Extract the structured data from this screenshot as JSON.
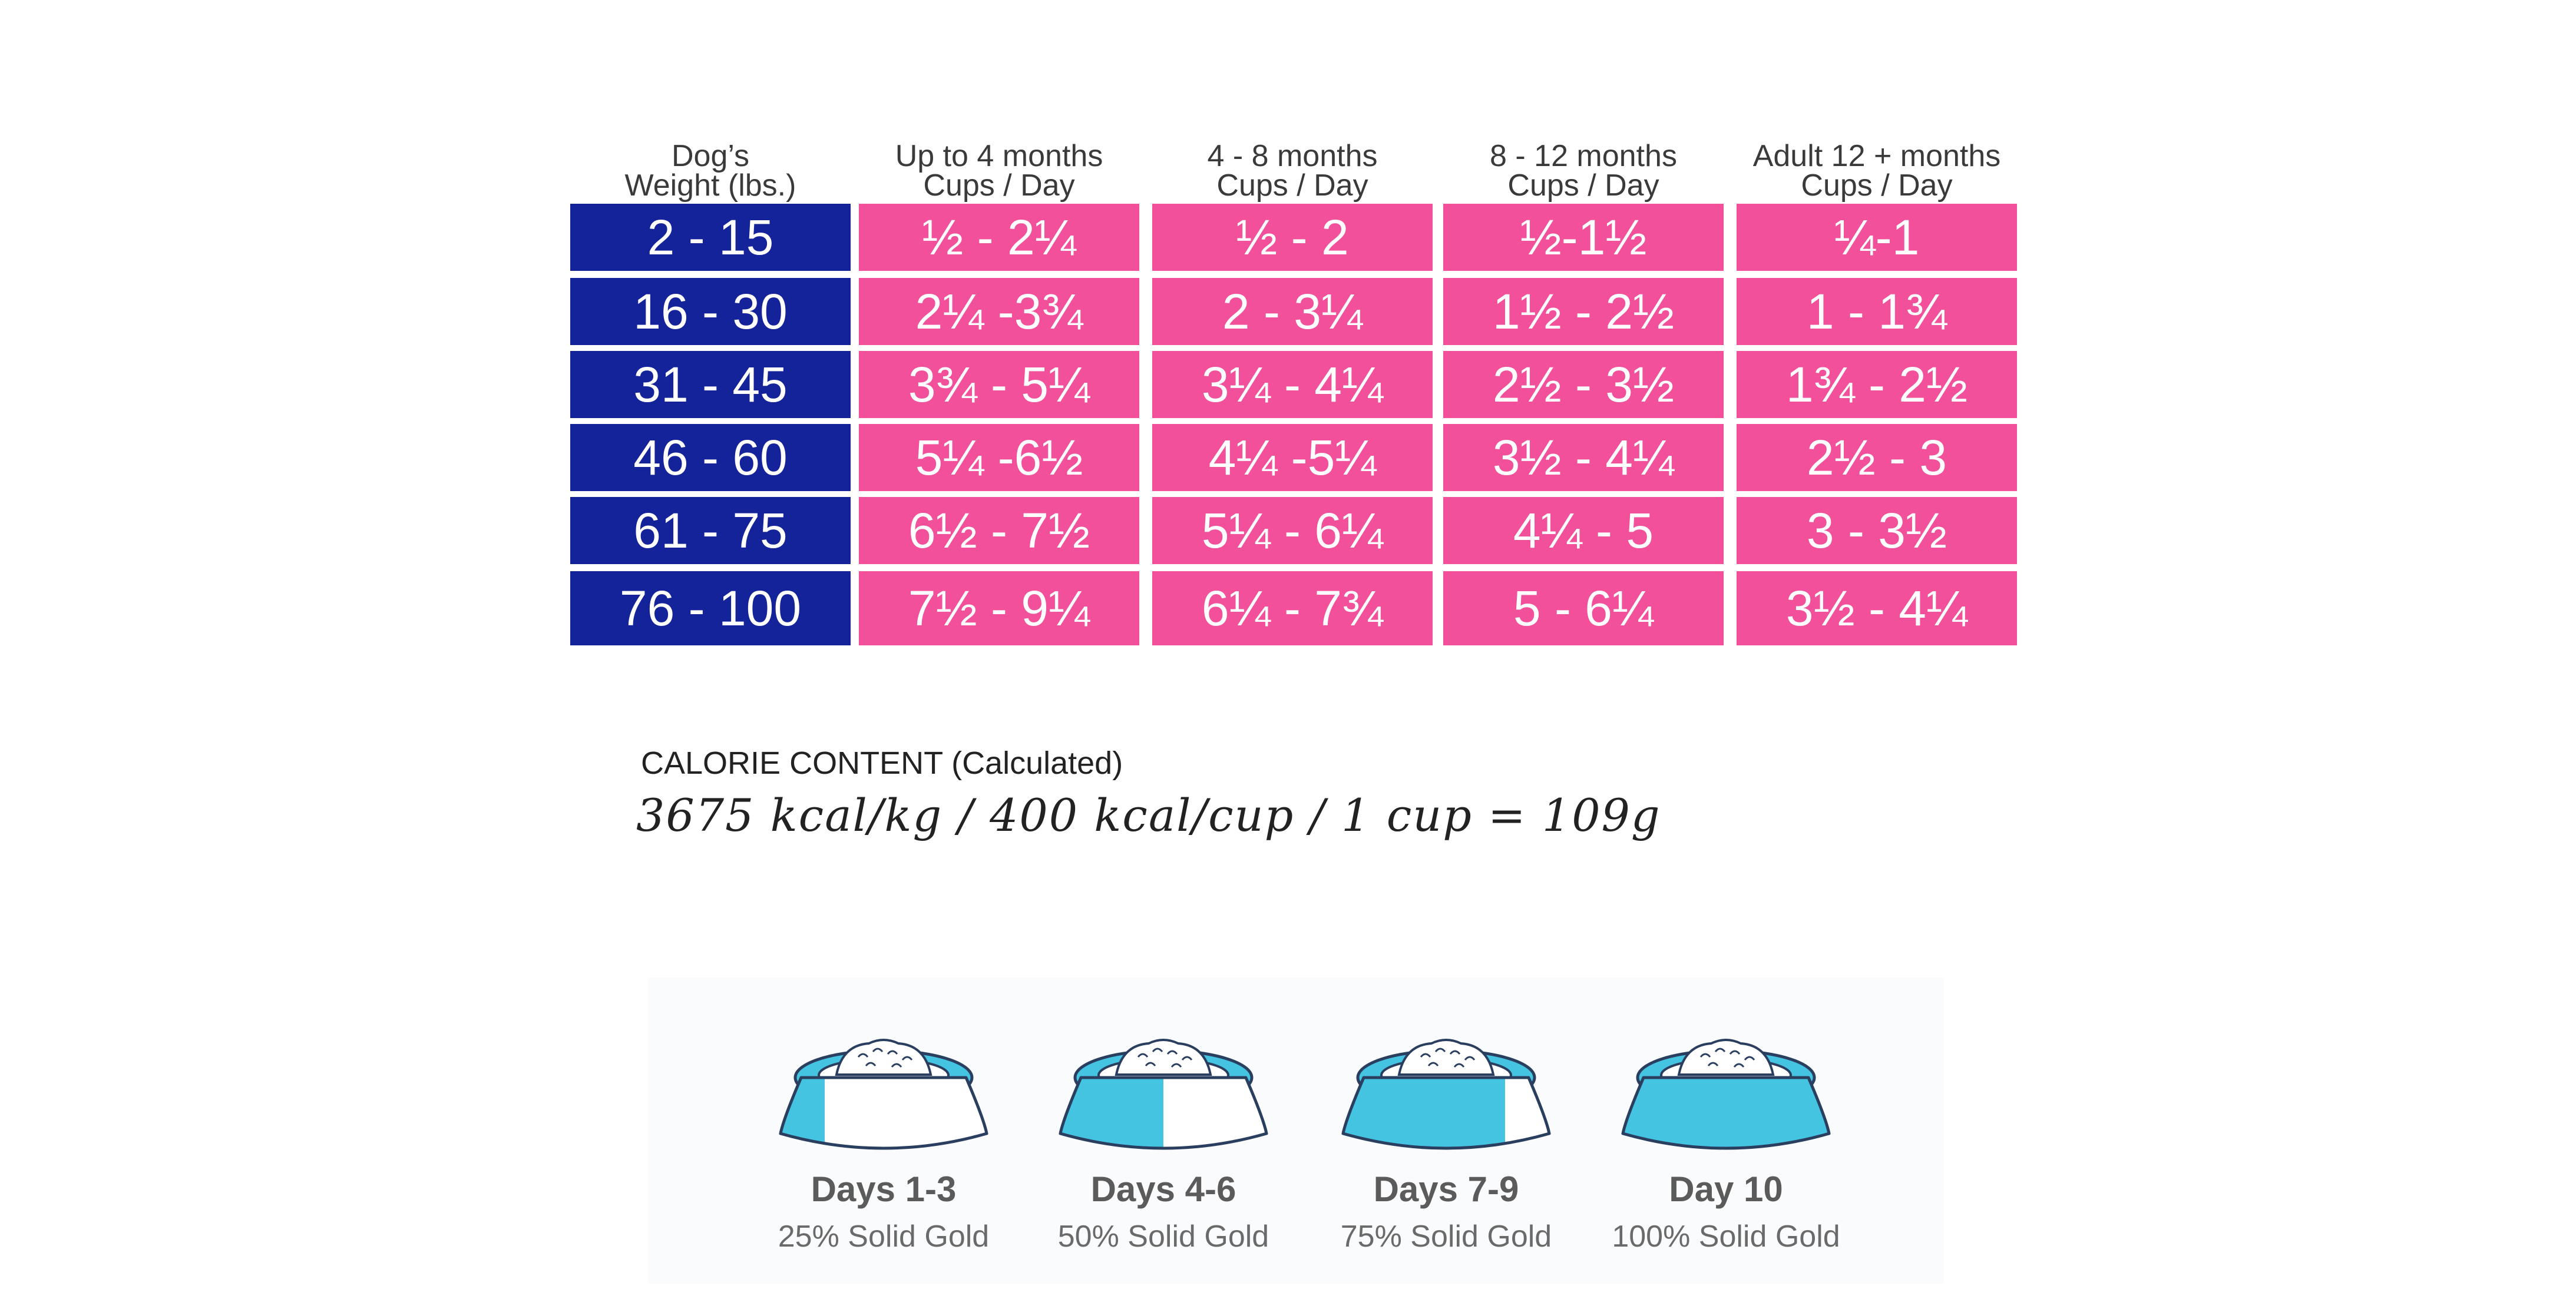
{
  "headers": [
    {
      "line1": "Dog’s",
      "line2": "Weight (lbs.)"
    },
    {
      "line1": "Up to 4 months",
      "line2": "Cups / Day"
    },
    {
      "line1": "4 - 8 months",
      "line2": "Cups / Day"
    },
    {
      "line1": "8 - 12 months",
      "line2": "Cups / Day"
    },
    {
      "line1": "Adult 12 + months",
      "line2": "Cups / Day"
    }
  ],
  "rows": [
    {
      "weight": "2 - 15",
      "up_to_4": "½ - 2¼",
      "m4_8": "½ - 2",
      "m8_12": "½-1½",
      "adult": "¼-1"
    },
    {
      "weight": "16 - 30",
      "up_to_4": "2¼ -3¾",
      "m4_8": "2 - 3¼",
      "m8_12": "1½ - 2½",
      "adult": "1 - 1¾"
    },
    {
      "weight": "31 - 45",
      "up_to_4": "3¾ - 5¼",
      "m4_8": "3¼ - 4¼",
      "m8_12": "2½ - 3½",
      "adult": "1¾ - 2½"
    },
    {
      "weight": "46 - 60",
      "up_to_4": "5¼ -6½",
      "m4_8": "4¼ -5¼",
      "m8_12": "3½ - 4¼",
      "adult": "2½ - 3"
    },
    {
      "weight": "61 - 75",
      "up_to_4": "6½ - 7½",
      "m4_8": "5¼ - 6¼",
      "m8_12": "4¼ - 5",
      "adult": "3 - 3½"
    },
    {
      "weight": "76 - 100",
      "up_to_4": "7½ - 9¼",
      "m4_8": "6¼ - 7¾",
      "m8_12": "5 - 6¼",
      "adult": "3½ - 4¼"
    }
  ],
  "calorie": {
    "title": "CALORIE CONTENT (Calculated)",
    "values": "3675 kcal/kg / 400 kcal/cup / 1 cup = 109g"
  },
  "transition": [
    {
      "days": "Days 1-3",
      "percent": "25% Solid Gold",
      "new_fraction": 0.25
    },
    {
      "days": "Days 4-6",
      "percent": "50% Solid Gold",
      "new_fraction": 0.5
    },
    {
      "days": "Days 7-9",
      "percent": "75% Solid Gold",
      "new_fraction": 0.75
    },
    {
      "days": "Day 10",
      "percent": "100% Solid Gold",
      "new_fraction": 1.0
    }
  ],
  "colors": {
    "weight_cell": "#15239a",
    "feed_cell": "#f2509a",
    "bowl_fill": "#45c4e2",
    "bowl_outline": "#2a3f5f"
  }
}
